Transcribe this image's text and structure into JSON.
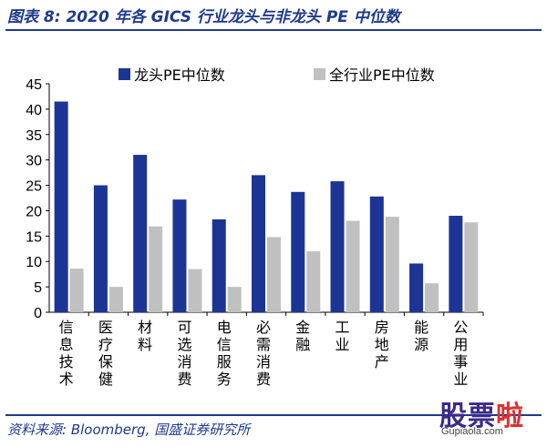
{
  "header": {
    "title": "图表 8:  2020 年各 GICS 行业龙头与非龙头 PE 中位数"
  },
  "footer": {
    "source": "资料来源:  Bloomberg,  国盛证券研究所"
  },
  "watermark": {
    "chars": [
      "股",
      "票",
      "啦"
    ],
    "url": "Gupiaola.com"
  },
  "colors": {
    "accent": "#1e3a8a",
    "series1": "#1c3594",
    "series2": "#c0c0c0",
    "text": "#000000"
  },
  "chart_data": {
    "type": "bar",
    "categories": [
      "信息技术",
      "医疗保健",
      "材料",
      "可选消费",
      "电信服务",
      "必需消费",
      "金融",
      "工业",
      "房地产",
      "能源",
      "公用事业"
    ],
    "series": [
      {
        "name": "龙头PE中位数",
        "values": [
          41.5,
          25,
          31,
          22.2,
          18.3,
          27,
          23.7,
          25.8,
          22.8,
          9.6,
          19
        ]
      },
      {
        "name": "全行业PE中位数",
        "values": [
          8.6,
          5,
          16.9,
          8.5,
          5,
          14.8,
          12,
          18,
          18.8,
          5.7,
          17.7
        ]
      }
    ],
    "yticks": [
      0,
      5,
      10,
      15,
      20,
      25,
      30,
      35,
      40,
      45
    ],
    "ylim": [
      0,
      45
    ],
    "grid": false,
    "legend": "top",
    "category_labels_vertical": true
  }
}
